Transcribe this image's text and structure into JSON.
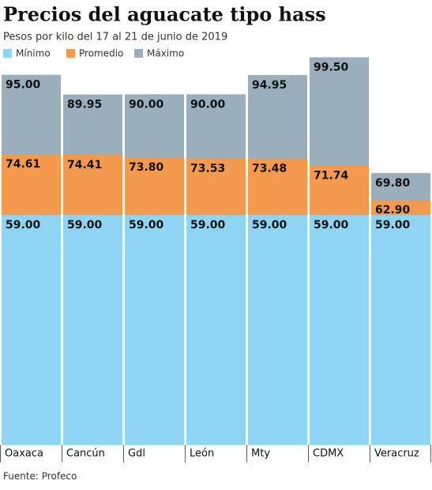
{
  "chart_data": {
    "type": "bar",
    "title": "Precios del aguacate tipo hass",
    "subtitle": "Pesos por kilo del 17 al 21 de junio de 2019",
    "categories": [
      "Oaxaca",
      "Cancún",
      "Gdl",
      "León",
      "Mty",
      "CDMX",
      "Veracruz"
    ],
    "series": [
      {
        "name": "Mínimo",
        "color": "#8fd4f2",
        "values": [
          59,
          59,
          59,
          59,
          59,
          59,
          59
        ],
        "value_labels": [
          "59.00",
          "59.00",
          "59.00",
          "59.00",
          "59.00",
          "59.00",
          "59.00"
        ]
      },
      {
        "name": "Promedio",
        "color": "#f49a4e",
        "values": [
          74.61,
          74.41,
          73.8,
          73.53,
          73.48,
          71.74,
          62.9
        ],
        "value_labels": [
          "74.61",
          "74.41",
          "73.80",
          "73.53",
          "73.48",
          "71.74",
          "62.90"
        ]
      },
      {
        "name": "Máximo",
        "color": "#9aafbb",
        "values": [
          95,
          89.95,
          90,
          90,
          94.95,
          99.5,
          69.8
        ],
        "value_labels": [
          "95.00",
          "89.95",
          "90.00",
          "90.00",
          "94.95",
          "99.50",
          "69.80"
        ]
      }
    ],
    "source": "Fuente: Profeco"
  }
}
